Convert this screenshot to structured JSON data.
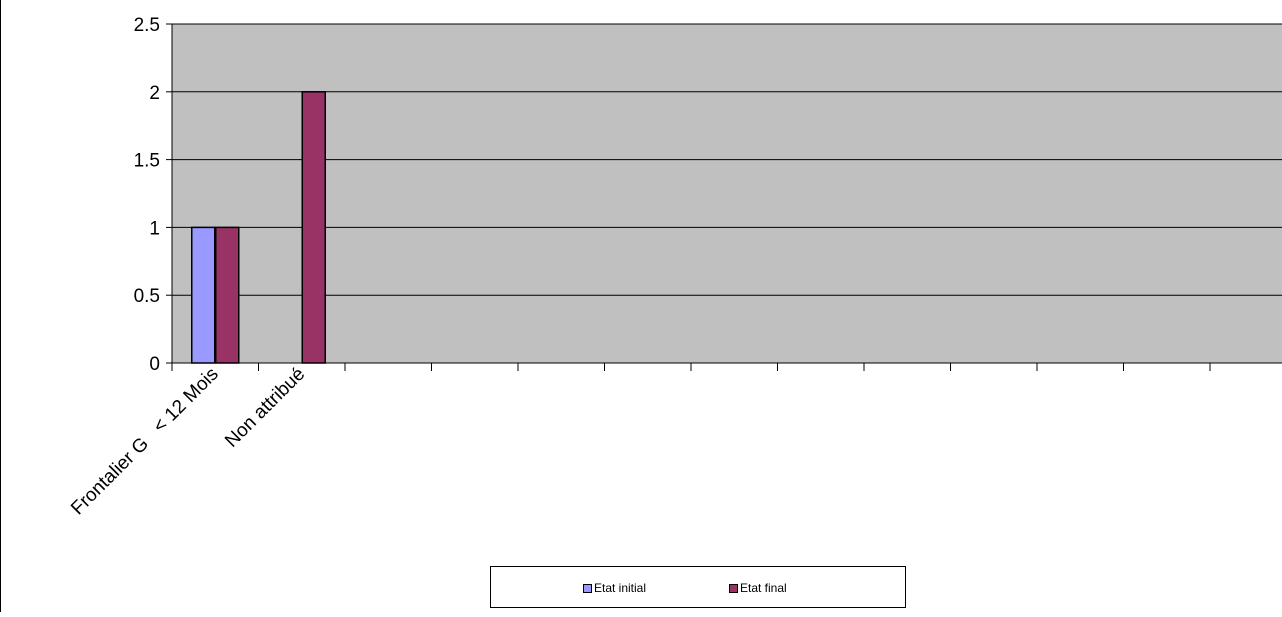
{
  "chart_data": {
    "type": "bar",
    "title": "",
    "xlabel": "",
    "ylabel": "",
    "categories": [
      "Frontalier G   < 12 Mois",
      "Non attribué",
      "",
      "",
      "",
      "",
      "",
      "",
      "",
      "",
      "",
      "",
      ""
    ],
    "series": [
      {
        "name": "Etat initial",
        "color": "#9999ff",
        "values": [
          1,
          0,
          0,
          0,
          0,
          0,
          0,
          0,
          0,
          0,
          0,
          0,
          0
        ]
      },
      {
        "name": "Etat final",
        "color": "#993366",
        "values": [
          1,
          2,
          0,
          0,
          0,
          0,
          0,
          0,
          0,
          0,
          0,
          0,
          0
        ]
      }
    ],
    "ylim": [
      0,
      2.5
    ],
    "yticks": [
      "0",
      "0.5",
      "1",
      "1.5",
      "2",
      "2.5"
    ],
    "grid": true,
    "plot_background": "#c0c0c0",
    "legend_position": "bottom"
  }
}
